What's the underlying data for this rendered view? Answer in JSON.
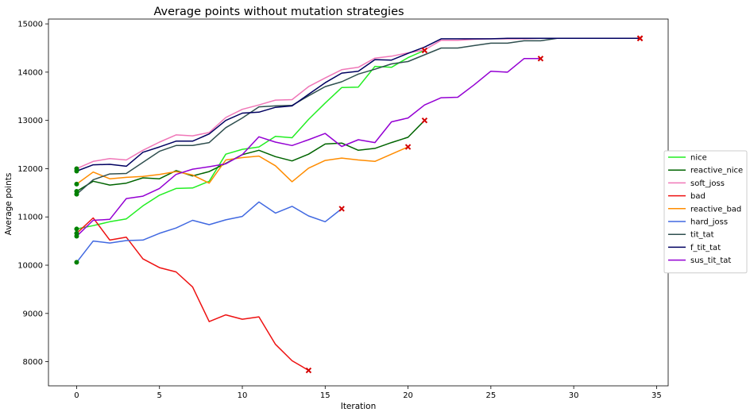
{
  "chart_data": {
    "type": "line",
    "title": "Average points without mutation strategies",
    "xlabel": "Iteration",
    "ylabel": "Average points",
    "xlim": [
      -1.7,
      35.7
    ],
    "ylim": [
      7500,
      15100
    ],
    "xticks": [
      0,
      5,
      10,
      15,
      20,
      25,
      30,
      35
    ],
    "yticks": [
      8000,
      9000,
      10000,
      11000,
      12000,
      13000,
      14000,
      15000
    ],
    "grid": false,
    "legend_position": "right",
    "start_marker_color": "#008000",
    "end_marker_color": "#d40000",
    "series": [
      {
        "name": "nice",
        "color": "#22ee22",
        "values": [
          10750,
          10820,
          10900,
          10960,
          11230,
          11450,
          11590,
          11600,
          11740,
          12300,
          12400,
          12450,
          12670,
          12640,
          13020,
          13360,
          13680,
          13690,
          14120,
          14100,
          14300,
          14450
        ]
      },
      {
        "name": "reactive_nice",
        "color": "#006400",
        "values": [
          11530,
          11740,
          11660,
          11700,
          11810,
          11790,
          11960,
          11850,
          11940,
          12110,
          12290,
          12380,
          12250,
          12160,
          12300,
          12510,
          12530,
          12380,
          12420,
          12540,
          12650,
          13000
        ]
      },
      {
        "name": "soft_joss",
        "color": "#f077b8",
        "values": [
          12000,
          12150,
          12210,
          12180,
          12380,
          12550,
          12700,
          12680,
          12750,
          13060,
          13230,
          13320,
          13420,
          13430,
          13700,
          13880,
          14050,
          14100,
          14290,
          14330,
          14400,
          14460,
          14660,
          14660,
          14680,
          14690,
          14690,
          14690,
          14700,
          14700,
          14700,
          14700,
          14700,
          14700,
          14700
        ]
      },
      {
        "name": "bad",
        "color": "#ee1111",
        "values": [
          10660,
          10980,
          10520,
          10580,
          10130,
          9950,
          9860,
          9550,
          8830,
          8970,
          8880,
          8930,
          8360,
          8020,
          7820
        ]
      },
      {
        "name": "reactive_bad",
        "color": "#ff8c00",
        "values": [
          11680,
          11930,
          11790,
          11820,
          11840,
          11880,
          11940,
          11870,
          11700,
          12180,
          12230,
          12260,
          12060,
          11730,
          12010,
          12170,
          12220,
          12180,
          12150,
          12300,
          12450
        ]
      },
      {
        "name": "hard_joss",
        "color": "#4169e1",
        "values": [
          10060,
          10500,
          10460,
          10510,
          10520,
          10660,
          10770,
          10930,
          10840,
          10940,
          11010,
          11310,
          11080,
          11220,
          11020,
          10900,
          11170
        ]
      },
      {
        "name": "tit_tat",
        "color": "#2f4f4f",
        "values": [
          11470,
          11770,
          11890,
          11900,
          12130,
          12360,
          12480,
          12480,
          12540,
          12850,
          13050,
          13280,
          13300,
          13310,
          13510,
          13700,
          13800,
          13960,
          14060,
          14170,
          14220,
          14360,
          14500,
          14500,
          14550,
          14600,
          14600,
          14650,
          14650,
          14700,
          14700,
          14700,
          14700,
          14700,
          14700
        ]
      },
      {
        "name": "f_tit_tat",
        "color": "#000060",
        "values": [
          11950,
          12080,
          12090,
          12050,
          12340,
          12450,
          12570,
          12570,
          12720,
          13000,
          13150,
          13170,
          13270,
          13300,
          13540,
          13780,
          13980,
          14020,
          14260,
          14250,
          14390,
          14520,
          14690,
          14690,
          14690,
          14690,
          14700,
          14700,
          14700,
          14700,
          14700,
          14700,
          14700,
          14700,
          14700
        ]
      },
      {
        "name": "sus_tit_tat",
        "color": "#9400d3",
        "values": [
          10600,
          10930,
          10950,
          11380,
          11430,
          11590,
          11880,
          11990,
          12040,
          12100,
          12290,
          12660,
          12550,
          12480,
          12600,
          12730,
          12460,
          12600,
          12540,
          12970,
          13050,
          13320,
          13470,
          13480,
          13740,
          14020,
          14000,
          14280,
          14280
        ]
      }
    ]
  }
}
